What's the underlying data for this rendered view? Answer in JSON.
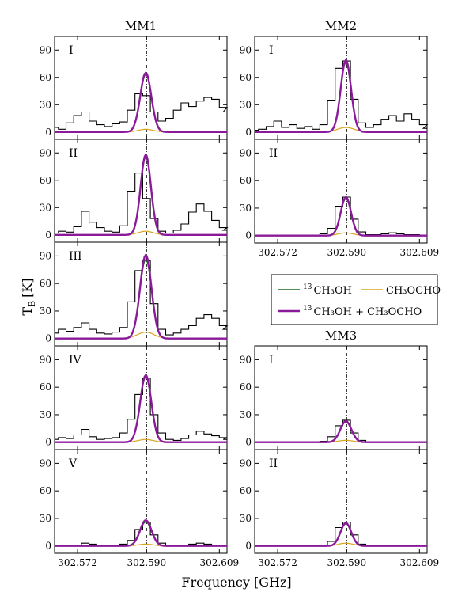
{
  "figure": {
    "ylabel": "T",
    "ylabel_sub": "B",
    "ylabel_unit": "[K]",
    "xlabel": "Frequency [GHz]"
  },
  "legend": {
    "items": [
      {
        "sup": "13",
        "label": "CH₃OH",
        "color": "#1a6b1a"
      },
      {
        "sup": "",
        "label": "CH₃OCHO",
        "color": "#d9a520"
      },
      {
        "sup": "13",
        "label": "CH₃OH + CH₃OCHO",
        "color": "#8b1a9b"
      }
    ]
  },
  "chart_data": [
    {
      "type": "line",
      "group": "MM1",
      "panel": "I",
      "title": "MM1",
      "x_ticks": [
        302.572,
        302.59,
        302.609
      ],
      "x_tick_labels": [
        "302.572",
        "302.590",
        "302.609"
      ],
      "show_x_labels": false,
      "y_ticks": [
        0,
        30,
        60,
        90
      ],
      "ylim": [
        -8,
        105
      ],
      "xlim": [
        302.566,
        302.611
      ],
      "center": 302.59,
      "observed": {
        "x": [
          302.566,
          302.568,
          302.57,
          302.572,
          302.574,
          302.576,
          302.578,
          302.58,
          302.582,
          302.584,
          302.586,
          302.588,
          302.59,
          302.592,
          302.594,
          302.596,
          302.598,
          302.6,
          302.602,
          302.604,
          302.606,
          302.608,
          302.61,
          302.611
        ],
        "y": [
          5,
          3,
          10,
          18,
          22,
          12,
          8,
          6,
          9,
          11,
          24,
          42,
          40,
          22,
          12,
          15,
          24,
          32,
          28,
          34,
          38,
          36,
          27,
          22
        ]
      },
      "series": [
        {
          "name": "13CH3OH",
          "amp": 63,
          "sigma": 0.00145,
          "mu": 302.5898
        },
        {
          "name": "CH3OCHO",
          "amp": 3,
          "sigma": 0.002,
          "mu": 302.5898
        },
        {
          "name": "13CH3OH + CH3OCHO",
          "amp": 65,
          "sigma": 0.00145,
          "mu": 302.5898
        }
      ]
    },
    {
      "type": "line",
      "group": "MM1",
      "panel": "II",
      "x_ticks": [
        302.572,
        302.59,
        302.609
      ],
      "x_tick_labels": [
        "302.572",
        "302.590",
        "302.609"
      ],
      "show_x_labels": false,
      "y_ticks": [
        0,
        30,
        60,
        90
      ],
      "ylim": [
        -8,
        105
      ],
      "xlim": [
        302.566,
        302.611
      ],
      "center": 302.59,
      "observed": {
        "x": [
          302.566,
          302.568,
          302.57,
          302.572,
          302.574,
          302.576,
          302.578,
          302.58,
          302.582,
          302.584,
          302.586,
          302.588,
          302.59,
          302.592,
          302.594,
          302.596,
          302.598,
          302.6,
          302.602,
          302.604,
          302.606,
          302.608,
          302.61,
          302.611
        ],
        "y": [
          2,
          4,
          3,
          9,
          26,
          14,
          8,
          4,
          3,
          10,
          48,
          68,
          40,
          18,
          4,
          2,
          5,
          12,
          25,
          34,
          26,
          16,
          8,
          5
        ]
      },
      "series": [
        {
          "name": "13CH3OH",
          "amp": 85,
          "sigma": 0.00135,
          "mu": 302.5898
        },
        {
          "name": "CH3OCHO",
          "amp": 4,
          "sigma": 0.002,
          "mu": 302.5898
        },
        {
          "name": "13CH3OH + CH3OCHO",
          "amp": 88,
          "sigma": 0.00135,
          "mu": 302.5898
        }
      ]
    },
    {
      "type": "line",
      "group": "MM1",
      "panel": "III",
      "x_ticks": [
        302.572,
        302.59,
        302.609
      ],
      "x_tick_labels": [
        "302.572",
        "302.590",
        "302.609"
      ],
      "show_x_labels": false,
      "y_ticks": [
        0,
        30,
        60,
        90
      ],
      "ylim": [
        -8,
        105
      ],
      "xlim": [
        302.566,
        302.611
      ],
      "center": 302.59,
      "observed": {
        "x": [
          302.566,
          302.568,
          302.57,
          302.572,
          302.574,
          302.576,
          302.578,
          302.58,
          302.582,
          302.584,
          302.586,
          302.588,
          302.59,
          302.592,
          302.594,
          302.596,
          302.598,
          302.6,
          302.602,
          302.604,
          302.606,
          302.608,
          302.61,
          302.611
        ],
        "y": [
          6,
          10,
          8,
          12,
          17,
          10,
          6,
          5,
          7,
          12,
          40,
          74,
          85,
          38,
          10,
          4,
          6,
          10,
          14,
          22,
          26,
          22,
          14,
          10
        ]
      },
      "series": [
        {
          "name": "13CH3OH",
          "amp": 86,
          "sigma": 0.0015,
          "mu": 302.5898
        },
        {
          "name": "CH3OCHO",
          "amp": 7,
          "sigma": 0.0022,
          "mu": 302.5898
        },
        {
          "name": "13CH3OH + CH3OCHO",
          "amp": 91,
          "sigma": 0.0015,
          "mu": 302.5898
        }
      ]
    },
    {
      "type": "line",
      "group": "MM1",
      "panel": "IV",
      "x_ticks": [
        302.572,
        302.59,
        302.609
      ],
      "x_tick_labels": [
        "302.572",
        "302.590",
        "302.609"
      ],
      "show_x_labels": false,
      "y_ticks": [
        0,
        30,
        60,
        90
      ],
      "ylim": [
        -8,
        105
      ],
      "xlim": [
        302.566,
        302.611
      ],
      "center": 302.59,
      "observed": {
        "x": [
          302.566,
          302.568,
          302.57,
          302.572,
          302.574,
          302.576,
          302.578,
          302.58,
          302.582,
          302.584,
          302.586,
          302.588,
          302.59,
          302.592,
          302.594,
          302.596,
          302.598,
          302.6,
          302.602,
          302.604,
          302.606,
          302.608,
          302.61,
          302.611
        ],
        "y": [
          3,
          5,
          4,
          8,
          14,
          6,
          3,
          4,
          5,
          10,
          25,
          52,
          70,
          30,
          10,
          3,
          2,
          4,
          8,
          12,
          9,
          7,
          5,
          3
        ]
      },
      "series": [
        {
          "name": "13CH3OH",
          "amp": 71,
          "sigma": 0.00145,
          "mu": 302.5898
        },
        {
          "name": "CH3OCHO",
          "amp": 3,
          "sigma": 0.002,
          "mu": 302.5898
        },
        {
          "name": "13CH3OH + CH3OCHO",
          "amp": 73,
          "sigma": 0.00145,
          "mu": 302.5898
        }
      ]
    },
    {
      "type": "line",
      "group": "MM1",
      "panel": "V",
      "x_ticks": [
        302.572,
        302.59,
        302.609
      ],
      "x_tick_labels": [
        "302.572",
        "302.590",
        "302.609"
      ],
      "show_x_labels": true,
      "y_ticks": [
        0,
        30,
        60,
        90
      ],
      "ylim": [
        -8,
        105
      ],
      "xlim": [
        302.566,
        302.611
      ],
      "center": 302.59,
      "observed": {
        "x": [
          302.566,
          302.568,
          302.57,
          302.572,
          302.574,
          302.576,
          302.578,
          302.58,
          302.582,
          302.584,
          302.586,
          302.588,
          302.59,
          302.592,
          302.594,
          302.596,
          302.598,
          302.6,
          302.602,
          302.604,
          302.606,
          302.608,
          302.61,
          302.611
        ],
        "y": [
          1,
          1,
          0,
          1,
          3,
          2,
          1,
          1,
          1,
          2,
          6,
          18,
          26,
          12,
          3,
          1,
          1,
          1,
          2,
          3,
          2,
          1,
          1,
          1
        ]
      },
      "series": [
        {
          "name": "13CH3OH",
          "amp": 26,
          "sigma": 0.0015,
          "mu": 302.5898
        },
        {
          "name": "CH3OCHO",
          "amp": 2,
          "sigma": 0.002,
          "mu": 302.5898
        },
        {
          "name": "13CH3OH + CH3OCHO",
          "amp": 28,
          "sigma": 0.0015,
          "mu": 302.5898
        }
      ]
    },
    {
      "type": "line",
      "group": "MM2",
      "panel": "I",
      "title": "MM2",
      "x_ticks": [
        302.572,
        302.59,
        302.609
      ],
      "x_tick_labels": [
        "302.572",
        "302.590",
        "302.609"
      ],
      "show_x_labels": false,
      "y_ticks": [
        0,
        30,
        60,
        90
      ],
      "ylim": [
        -8,
        105
      ],
      "xlim": [
        302.566,
        302.611
      ],
      "center": 302.59,
      "observed": {
        "x": [
          302.566,
          302.568,
          302.57,
          302.572,
          302.574,
          302.576,
          302.578,
          302.58,
          302.582,
          302.584,
          302.586,
          302.588,
          302.59,
          302.592,
          302.594,
          302.596,
          302.598,
          302.6,
          302.602,
          302.604,
          302.606,
          302.608,
          302.61,
          302.611
        ],
        "y": [
          2,
          3,
          6,
          12,
          5,
          8,
          4,
          6,
          3,
          8,
          35,
          70,
          78,
          36,
          10,
          5,
          8,
          14,
          18,
          12,
          20,
          14,
          8,
          4
        ]
      },
      "series": [
        {
          "name": "13CH3OH",
          "amp": 76,
          "sigma": 0.00135,
          "mu": 302.5898
        },
        {
          "name": "CH3OCHO",
          "amp": 5,
          "sigma": 0.0022,
          "mu": 302.5898
        },
        {
          "name": "13CH3OH + CH3OCHO",
          "amp": 79,
          "sigma": 0.00135,
          "mu": 302.5898
        }
      ]
    },
    {
      "type": "line",
      "group": "MM2",
      "panel": "II",
      "x_ticks": [
        302.572,
        302.59,
        302.609
      ],
      "x_tick_labels": [
        "302.572",
        "302.590",
        "302.609"
      ],
      "show_x_labels": true,
      "y_ticks": [
        0,
        30,
        60,
        90
      ],
      "ylim": [
        -8,
        105
      ],
      "xlim": [
        302.566,
        302.611
      ],
      "center": 302.59,
      "observed": {
        "x": [
          302.566,
          302.568,
          302.57,
          302.572,
          302.574,
          302.576,
          302.578,
          302.58,
          302.582,
          302.584,
          302.586,
          302.588,
          302.59,
          302.592,
          302.594,
          302.596,
          302.598,
          302.6,
          302.602,
          302.604,
          302.606,
          302.608,
          302.61,
          302.611
        ],
        "y": [
          0,
          0,
          0,
          0,
          0,
          0,
          0,
          0,
          0,
          2,
          8,
          32,
          42,
          18,
          4,
          1,
          1,
          2,
          3,
          2,
          1,
          1,
          0,
          0
        ]
      },
      "series": [
        {
          "name": "13CH3OH",
          "amp": 40,
          "sigma": 0.00135,
          "mu": 302.5898
        },
        {
          "name": "CH3OCHO",
          "amp": 3,
          "sigma": 0.002,
          "mu": 302.5898
        },
        {
          "name": "13CH3OH + CH3OCHO",
          "amp": 42,
          "sigma": 0.00135,
          "mu": 302.5898
        }
      ]
    },
    {
      "type": "line",
      "group": "MM3",
      "panel": "I",
      "title": "MM3",
      "x_ticks": [
        302.572,
        302.59,
        302.609
      ],
      "x_tick_labels": [
        "302.572",
        "302.590",
        "302.609"
      ],
      "show_x_labels": false,
      "y_ticks": [
        0,
        30,
        60,
        90
      ],
      "ylim": [
        -8,
        105
      ],
      "xlim": [
        302.566,
        302.611
      ],
      "center": 302.59,
      "observed": {
        "x": [
          302.566,
          302.568,
          302.57,
          302.572,
          302.574,
          302.576,
          302.578,
          302.58,
          302.582,
          302.584,
          302.586,
          302.588,
          302.59,
          302.592,
          302.594,
          302.596,
          302.598,
          302.6,
          302.602,
          302.604,
          302.606,
          302.608,
          302.61,
          302.611
        ],
        "y": [
          0,
          0,
          0,
          0,
          0,
          0,
          0,
          0,
          0,
          1,
          6,
          18,
          24,
          10,
          2,
          0,
          0,
          0,
          0,
          0,
          0,
          0,
          0,
          0
        ]
      },
      "series": [
        {
          "name": "13CH3OH",
          "amp": 22,
          "sigma": 0.00145,
          "mu": 302.5898
        },
        {
          "name": "CH3OCHO",
          "amp": 2,
          "sigma": 0.002,
          "mu": 302.5898
        },
        {
          "name": "13CH3OH + CH3OCHO",
          "amp": 23,
          "sigma": 0.00145,
          "mu": 302.5898
        }
      ]
    },
    {
      "type": "line",
      "group": "MM3",
      "panel": "II",
      "x_ticks": [
        302.572,
        302.59,
        302.609
      ],
      "x_tick_labels": [
        "302.572",
        "302.590",
        "302.609"
      ],
      "show_x_labels": true,
      "y_ticks": [
        0,
        30,
        60,
        90
      ],
      "ylim": [
        -8,
        105
      ],
      "xlim": [
        302.566,
        302.611
      ],
      "center": 302.59,
      "observed": {
        "x": [
          302.566,
          302.568,
          302.57,
          302.572,
          302.574,
          302.576,
          302.578,
          302.58,
          302.582,
          302.584,
          302.586,
          302.588,
          302.59,
          302.592,
          302.594,
          302.596,
          302.598,
          302.6,
          302.602,
          302.604,
          302.606,
          302.608,
          302.61,
          302.611
        ],
        "y": [
          0,
          0,
          0,
          0,
          0,
          0,
          0,
          0,
          0,
          1,
          5,
          20,
          26,
          12,
          2,
          0,
          0,
          0,
          0,
          0,
          0,
          0,
          0,
          0
        ]
      },
      "series": [
        {
          "name": "13CH3OH",
          "amp": 24,
          "sigma": 0.0014,
          "mu": 302.5898
        },
        {
          "name": "CH3OCHO",
          "amp": 3,
          "sigma": 0.002,
          "mu": 302.5898
        },
        {
          "name": "13CH3OH + CH3OCHO",
          "amp": 25,
          "sigma": 0.0014,
          "mu": 302.5898
        }
      ]
    }
  ]
}
